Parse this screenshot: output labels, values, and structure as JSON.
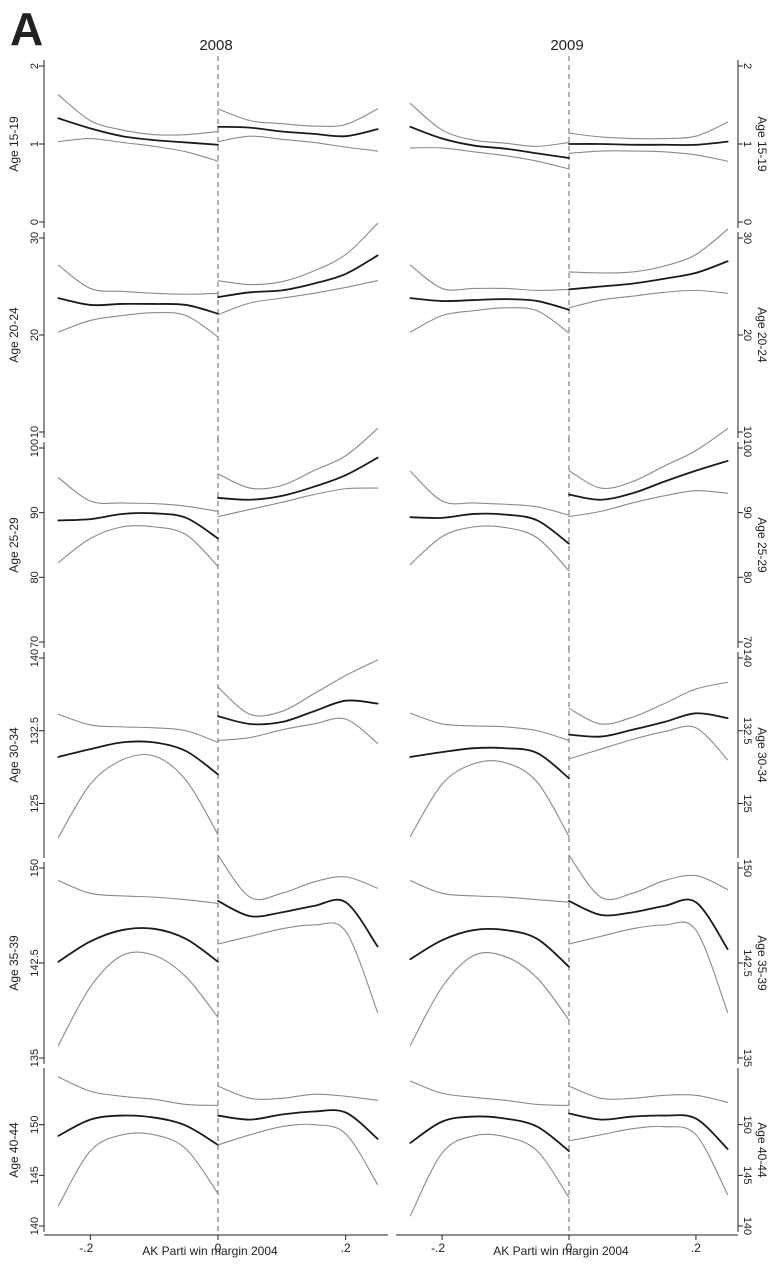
{
  "figure_label": "A",
  "colors": {
    "mean": "#1a1a1a",
    "ci": "#8a8a8a",
    "axis": "#222222",
    "cutoff": "#888888"
  },
  "chart_data": {
    "type": "line",
    "grid": false,
    "columns": [
      "2008",
      "2009"
    ],
    "xlabel": "AK Parti win margin 2004",
    "xlim": [
      -0.26,
      0.26
    ],
    "xticks": [
      -0.2,
      0,
      0.2
    ],
    "xtick_labels": [
      ".2",
      "0",
      ".2"
    ],
    "cutoff": 0,
    "rows": [
      {
        "label": "Age 15-19",
        "ylim": [
          0,
          2
        ],
        "yticks": [
          0,
          1,
          2
        ],
        "ytick_labels": [
          "0",
          "1",
          "2"
        ],
        "xs": [
          -0.25,
          -0.2,
          -0.15,
          -0.1,
          -0.05,
          0
        ],
        "xs_right": [
          0,
          0.05,
          0.1,
          0.15,
          0.2,
          0.25
        ],
        "panels": [
          {
            "left": {
              "mean": [
                1.33,
                1.2,
                1.1,
                1.05,
                1.02,
                0.99
              ],
              "upper": [
                1.63,
                1.3,
                1.18,
                1.12,
                1.12,
                1.16
              ],
              "lower": [
                1.03,
                1.07,
                1.02,
                0.97,
                0.9,
                0.78
              ]
            },
            "right": {
              "mean": [
                1.22,
                1.21,
                1.16,
                1.13,
                1.1,
                1.19
              ],
              "upper": [
                1.45,
                1.3,
                1.26,
                1.23,
                1.25,
                1.45
              ],
              "lower": [
                1.03,
                1.1,
                1.06,
                1.02,
                0.96,
                0.91
              ]
            }
          },
          {
            "left": {
              "mean": [
                1.22,
                1.07,
                0.98,
                0.94,
                0.88,
                0.82
              ],
              "upper": [
                1.52,
                1.18,
                1.05,
                1.01,
                0.97,
                1.02
              ],
              "lower": [
                0.95,
                0.95,
                0.9,
                0.85,
                0.78,
                0.68
              ]
            },
            "right": {
              "mean": [
                1.0,
                1.0,
                0.99,
                0.99,
                0.99,
                1.03
              ],
              "upper": [
                1.14,
                1.09,
                1.07,
                1.07,
                1.1,
                1.28
              ],
              "lower": [
                0.88,
                0.91,
                0.91,
                0.9,
                0.86,
                0.78
              ]
            }
          }
        ]
      },
      {
        "label": "Age 20-24",
        "ylim": [
          10,
          30
        ],
        "yticks": [
          10,
          20,
          30
        ],
        "ytick_labels": [
          "10",
          "20",
          "30"
        ],
        "xs": [
          -0.25,
          -0.2,
          -0.15,
          -0.1,
          -0.05,
          0
        ],
        "xs_right": [
          0,
          0.05,
          0.1,
          0.15,
          0.2,
          0.25
        ],
        "panels": [
          {
            "left": {
              "mean": [
                23.8,
                23.1,
                23.2,
                23.2,
                23.1,
                22.2
              ],
              "upper": [
                27.2,
                24.8,
                24.5,
                24.3,
                24.2,
                24.3
              ],
              "lower": [
                20.3,
                21.5,
                22.0,
                22.3,
                22.0,
                19.8
              ]
            },
            "right": {
              "mean": [
                23.9,
                24.4,
                24.6,
                25.3,
                26.3,
                28.2
              ],
              "upper": [
                25.6,
                25.2,
                25.5,
                26.6,
                28.3,
                31.5
              ],
              "lower": [
                22.1,
                23.3,
                23.8,
                24.3,
                24.9,
                25.6
              ]
            }
          },
          {
            "left": {
              "mean": [
                23.8,
                23.5,
                23.6,
                23.7,
                23.5,
                22.6
              ],
              "upper": [
                27.2,
                24.8,
                24.8,
                24.8,
                24.6,
                24.7
              ],
              "lower": [
                20.3,
                22.0,
                22.5,
                22.8,
                22.5,
                20.2
              ]
            },
            "right": {
              "mean": [
                24.7,
                25.0,
                25.3,
                25.8,
                26.4,
                27.6
              ],
              "upper": [
                26.5,
                26.4,
                26.5,
                27.1,
                28.3,
                30.9
              ],
              "lower": [
                22.8,
                23.6,
                24.0,
                24.4,
                24.6,
                24.3
              ]
            }
          }
        ]
      },
      {
        "label": "Age 25-29",
        "ylim": [
          70,
          100
        ],
        "yticks": [
          70,
          80,
          90,
          100
        ],
        "ytick_labels": [
          "70",
          "80",
          "90",
          "100"
        ],
        "xs": [
          -0.25,
          -0.2,
          -0.15,
          -0.1,
          -0.05,
          0
        ],
        "xs_right": [
          0,
          0.05,
          0.1,
          0.15,
          0.2,
          0.25
        ],
        "panels": [
          {
            "left": {
              "mean": [
                88.8,
                89.0,
                89.8,
                89.9,
                89.2,
                86.0
              ],
              "upper": [
                95.4,
                91.8,
                91.5,
                91.4,
                91.0,
                90.2
              ],
              "lower": [
                82.3,
                86.0,
                87.8,
                87.8,
                86.6,
                81.7
              ]
            },
            "right": {
              "mean": [
                92.3,
                92.0,
                92.6,
                94.0,
                95.8,
                98.5
              ],
              "upper": [
                96.0,
                93.8,
                94.2,
                96.5,
                98.8,
                103.0
              ],
              "lower": [
                89.4,
                90.5,
                91.6,
                92.8,
                93.7,
                93.8
              ]
            }
          },
          {
            "left": {
              "mean": [
                89.3,
                89.2,
                89.8,
                89.7,
                88.8,
                85.2
              ],
              "upper": [
                96.4,
                91.8,
                91.5,
                91.3,
                90.9,
                89.6
              ],
              "lower": [
                82.0,
                86.3,
                87.8,
                87.7,
                86.1,
                81.0
              ]
            },
            "right": {
              "mean": [
                92.8,
                92.0,
                93.0,
                94.8,
                96.5,
                98.0
              ],
              "upper": [
                96.5,
                93.8,
                94.8,
                97.2,
                99.6,
                103.0
              ],
              "lower": [
                89.4,
                90.2,
                91.5,
                92.6,
                93.4,
                93.0
              ]
            }
          }
        ]
      },
      {
        "label": "Age 30-34",
        "ylim": [
          120,
          140
        ],
        "yticks": [
          125,
          132.5,
          140
        ],
        "ytick_labels": [
          "125",
          "132.5",
          "140"
        ],
        "xs": [
          -0.25,
          -0.2,
          -0.15,
          -0.1,
          -0.05,
          0
        ],
        "xs_right": [
          0,
          0.05,
          0.1,
          0.15,
          0.2,
          0.25
        ],
        "panels": [
          {
            "left": {
              "mean": [
                129.8,
                130.6,
                131.3,
                131.3,
                130.4,
                128.0
              ],
              "upper": [
                134.2,
                133.1,
                132.9,
                132.8,
                132.5,
                131.3
              ],
              "lower": [
                121.5,
                127.0,
                129.5,
                129.9,
                127.4,
                121.8
              ]
            },
            "right": {
              "mean": [
                134.0,
                133.2,
                133.4,
                134.5,
                135.6,
                135.3
              ],
              "upper": [
                137.0,
                134.2,
                134.5,
                136.3,
                138.2,
                139.8
              ],
              "lower": [
                131.5,
                131.8,
                132.6,
                133.2,
                133.7,
                131.2
              ]
            }
          },
          {
            "left": {
              "mean": [
                129.8,
                130.3,
                130.7,
                130.7,
                130.2,
                127.6
              ],
              "upper": [
                134.3,
                133.2,
                133.0,
                132.9,
                132.5,
                131.5
              ],
              "lower": [
                121.6,
                127.0,
                129.1,
                129.2,
                127.2,
                121.6
              ]
            },
            "right": {
              "mean": [
                132.1,
                131.9,
                132.6,
                133.4,
                134.3,
                133.8
              ],
              "upper": [
                134.8,
                133.2,
                133.9,
                135.3,
                136.8,
                137.5
              ],
              "lower": [
                129.6,
                130.6,
                131.6,
                132.4,
                132.8,
                129.5
              ]
            }
          }
        ]
      },
      {
        "label": "Age 35-39",
        "ylim": [
          135,
          150
        ],
        "yticks": [
          135,
          142.5,
          150
        ],
        "ytick_labels": [
          "135",
          "142.5",
          "150"
        ],
        "xs": [
          -0.25,
          -0.2,
          -0.15,
          -0.1,
          -0.05,
          0
        ],
        "xs_right": [
          0,
          0.05,
          0.1,
          0.15,
          0.2,
          0.25
        ],
        "panels": [
          {
            "left": {
              "mean": [
                142.6,
                144.2,
                145.1,
                145.2,
                144.4,
                142.6
              ],
              "upper": [
                149.0,
                148.0,
                147.8,
                147.7,
                147.5,
                147.2
              ],
              "lower": [
                136.0,
                140.6,
                143.1,
                143.1,
                141.4,
                138.2
              ]
            },
            "right": {
              "mean": [
                147.4,
                146.2,
                146.5,
                147.0,
                147.3,
                143.8
              ],
              "upper": [
                151.0,
                147.7,
                148.0,
                148.9,
                149.3,
                148.4
              ],
              "lower": [
                144.0,
                144.6,
                145.2,
                145.5,
                145.0,
                138.6
              ]
            }
          },
          {
            "left": {
              "mean": [
                142.8,
                144.3,
                145.1,
                145.1,
                144.4,
                142.2
              ],
              "upper": [
                149.0,
                148.0,
                147.8,
                147.7,
                147.5,
                147.3
              ],
              "lower": [
                136.0,
                140.6,
                143.1,
                143.0,
                141.3,
                138.0
              ]
            },
            "right": {
              "mean": [
                147.4,
                146.3,
                146.5,
                147.0,
                147.3,
                143.6
              ],
              "upper": [
                151.0,
                147.7,
                148.0,
                149.0,
                149.4,
                148.3
              ],
              "lower": [
                144.0,
                144.6,
                145.2,
                145.5,
                145.1,
                138.6
              ]
            }
          }
        ]
      },
      {
        "label": "Age 40-44",
        "ylim": [
          140,
          155
        ],
        "yticks": [
          140,
          145,
          150
        ],
        "ytick_labels": [
          "140",
          "145",
          "150"
        ],
        "xs": [
          -0.25,
          -0.2,
          -0.15,
          -0.1,
          -0.05,
          0
        ],
        "xs_right": [
          0,
          0.05,
          0.1,
          0.15,
          0.2,
          0.25
        ],
        "panels": [
          {
            "left": {
              "mean": [
                148.9,
                150.5,
                150.9,
                150.7,
                149.9,
                148.0
              ],
              "upper": [
                154.7,
                153.3,
                152.8,
                152.5,
                152.0,
                151.9
              ],
              "lower": [
                142.0,
                147.4,
                149.0,
                149.0,
                147.6,
                143.2
              ]
            },
            "right": {
              "mean": [
                150.9,
                150.5,
                151.0,
                151.3,
                151.2,
                148.6
              ],
              "upper": [
                153.8,
                152.6,
                152.6,
                153.0,
                152.8,
                152.4
              ],
              "lower": [
                148.0,
                149.0,
                149.8,
                150.0,
                149.1,
                144.1
              ]
            }
          },
          {
            "left": {
              "mean": [
                148.2,
                150.3,
                150.8,
                150.6,
                149.8,
                147.4
              ],
              "upper": [
                154.3,
                153.1,
                152.7,
                152.4,
                152.0,
                151.9
              ],
              "lower": [
                141.0,
                147.2,
                148.9,
                148.8,
                147.4,
                142.8
              ]
            },
            "right": {
              "mean": [
                151.1,
                150.5,
                150.8,
                150.9,
                150.6,
                147.6
              ],
              "upper": [
                153.8,
                152.6,
                152.6,
                152.9,
                152.9,
                152.2
              ],
              "lower": [
                148.4,
                149.0,
                149.6,
                149.8,
                149.0,
                143.1
              ]
            }
          }
        ]
      }
    ]
  }
}
